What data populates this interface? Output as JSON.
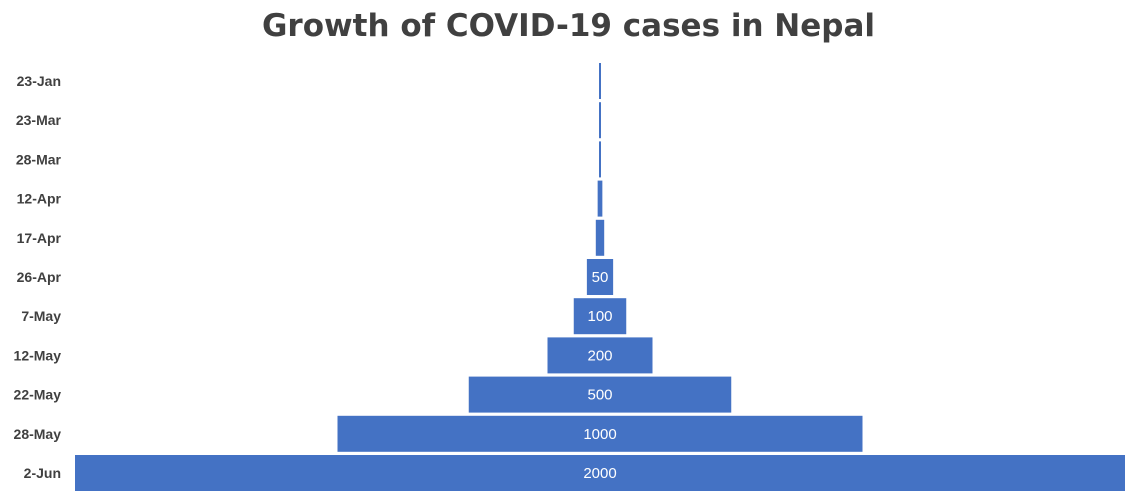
{
  "chart_data": {
    "type": "bar",
    "orientation": "horizontal-funnel",
    "title": "Growth of COVID-19 cases in Nepal",
    "categories": [
      "23-Jan",
      "23-Mar",
      "28-Mar",
      "12-Apr",
      "17-Apr",
      "26-Apr",
      "7-May",
      "12-May",
      "22-May",
      "28-May",
      "2-Jun"
    ],
    "values": [
      1,
      2,
      3,
      9,
      16,
      50,
      100,
      200,
      500,
      1000,
      2000
    ],
    "data_labels": [
      "",
      "",
      "",
      "",
      "",
      "50",
      "100",
      "200",
      "500",
      "1000",
      "2000"
    ],
    "bar_color": "#4472C4",
    "label_color": "#FFFFFF",
    "grid": false,
    "legend": "none"
  }
}
